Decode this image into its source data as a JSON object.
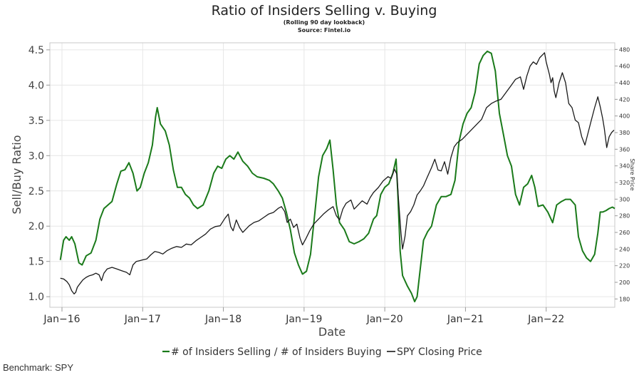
{
  "chart_data": {
    "type": "line",
    "title": "Ratio of Insiders Selling v. Buying",
    "subtitle_lines": [
      "(Rolling 90 day lookback)",
      "Source: Fintel.io"
    ],
    "xlabel": "Date",
    "ylabel_left": "Sell/Buy Ratio",
    "ylabel_right": "Share Price",
    "x_ticks": [
      "Jan−16",
      "Jan−17",
      "Jan−18",
      "Jan−19",
      "Jan−20",
      "Jan−21",
      "Jan−22"
    ],
    "x_range": [
      2015.85,
      2022.85
    ],
    "y_left": {
      "range": [
        0.85,
        4.6
      ],
      "ticks": [
        "1.0",
        "1.5",
        "2.0",
        "2.5",
        "3.0",
        "3.5",
        "4.0",
        "4.5"
      ]
    },
    "y_right": {
      "range": [
        170,
        488
      ],
      "ticks": [
        "180",
        "200",
        "220",
        "240",
        "260",
        "280",
        "300",
        "320",
        "340",
        "360",
        "380",
        "400",
        "420",
        "440",
        "460",
        "480"
      ]
    },
    "grid": true,
    "legend_position": "bottom",
    "series": [
      {
        "name": "# of Insiders Selling / # of Insiders Buying",
        "color": "#1a7a1a",
        "axis": "left",
        "points": [
          [
            2015.98,
            1.52
          ],
          [
            2016.02,
            1.8
          ],
          [
            2016.05,
            1.85
          ],
          [
            2016.09,
            1.8
          ],
          [
            2016.12,
            1.85
          ],
          [
            2016.16,
            1.75
          ],
          [
            2016.21,
            1.48
          ],
          [
            2016.25,
            1.45
          ],
          [
            2016.3,
            1.58
          ],
          [
            2016.36,
            1.62
          ],
          [
            2016.42,
            1.8
          ],
          [
            2016.47,
            2.1
          ],
          [
            2016.52,
            2.25
          ],
          [
            2016.57,
            2.3
          ],
          [
            2016.62,
            2.35
          ],
          [
            2016.68,
            2.6
          ],
          [
            2016.73,
            2.78
          ],
          [
            2016.78,
            2.8
          ],
          [
            2016.83,
            2.9
          ],
          [
            2016.88,
            2.75
          ],
          [
            2016.93,
            2.5
          ],
          [
            2016.97,
            2.55
          ],
          [
            2017.02,
            2.75
          ],
          [
            2017.07,
            2.9
          ],
          [
            2017.12,
            3.15
          ],
          [
            2017.16,
            3.55
          ],
          [
            2017.18,
            3.68
          ],
          [
            2017.22,
            3.45
          ],
          [
            2017.28,
            3.35
          ],
          [
            2017.33,
            3.15
          ],
          [
            2017.38,
            2.8
          ],
          [
            2017.43,
            2.55
          ],
          [
            2017.48,
            2.55
          ],
          [
            2017.53,
            2.45
          ],
          [
            2017.58,
            2.4
          ],
          [
            2017.63,
            2.3
          ],
          [
            2017.68,
            2.25
          ],
          [
            2017.75,
            2.3
          ],
          [
            2017.82,
            2.5
          ],
          [
            2017.88,
            2.75
          ],
          [
            2017.93,
            2.85
          ],
          [
            2017.98,
            2.82
          ],
          [
            2018.03,
            2.95
          ],
          [
            2018.08,
            3.0
          ],
          [
            2018.13,
            2.95
          ],
          [
            2018.18,
            3.05
          ],
          [
            2018.24,
            2.92
          ],
          [
            2018.3,
            2.85
          ],
          [
            2018.36,
            2.75
          ],
          [
            2018.42,
            2.7
          ],
          [
            2018.5,
            2.68
          ],
          [
            2018.57,
            2.65
          ],
          [
            2018.62,
            2.6
          ],
          [
            2018.68,
            2.5
          ],
          [
            2018.73,
            2.4
          ],
          [
            2018.78,
            2.2
          ],
          [
            2018.83,
            1.95
          ],
          [
            2018.88,
            1.62
          ],
          [
            2018.93,
            1.45
          ],
          [
            2018.98,
            1.32
          ],
          [
            2019.03,
            1.36
          ],
          [
            2019.08,
            1.6
          ],
          [
            2019.13,
            2.15
          ],
          [
            2019.18,
            2.7
          ],
          [
            2019.23,
            3.0
          ],
          [
            2019.28,
            3.1
          ],
          [
            2019.32,
            3.22
          ],
          [
            2019.36,
            2.8
          ],
          [
            2019.4,
            2.3
          ],
          [
            2019.44,
            2.05
          ],
          [
            2019.5,
            1.95
          ],
          [
            2019.56,
            1.78
          ],
          [
            2019.62,
            1.75
          ],
          [
            2019.68,
            1.78
          ],
          [
            2019.74,
            1.82
          ],
          [
            2019.8,
            1.9
          ],
          [
            2019.86,
            2.1
          ],
          [
            2019.9,
            2.15
          ],
          [
            2019.95,
            2.45
          ],
          [
            2020.0,
            2.55
          ],
          [
            2020.05,
            2.6
          ],
          [
            2020.1,
            2.75
          ],
          [
            2020.14,
            2.95
          ],
          [
            2020.16,
            2.5
          ],
          [
            2020.19,
            1.65
          ],
          [
            2020.22,
            1.3
          ],
          [
            2020.28,
            1.15
          ],
          [
            2020.33,
            1.05
          ],
          [
            2020.37,
            0.93
          ],
          [
            2020.4,
            1.0
          ],
          [
            2020.44,
            1.4
          ],
          [
            2020.48,
            1.8
          ],
          [
            2020.53,
            1.92
          ],
          [
            2020.58,
            2.0
          ],
          [
            2020.64,
            2.3
          ],
          [
            2020.7,
            2.42
          ],
          [
            2020.76,
            2.42
          ],
          [
            2020.82,
            2.45
          ],
          [
            2020.87,
            2.65
          ],
          [
            2020.92,
            3.2
          ],
          [
            2020.97,
            3.45
          ],
          [
            2021.02,
            3.6
          ],
          [
            2021.07,
            3.68
          ],
          [
            2021.12,
            3.9
          ],
          [
            2021.17,
            4.3
          ],
          [
            2021.22,
            4.42
          ],
          [
            2021.27,
            4.48
          ],
          [
            2021.32,
            4.45
          ],
          [
            2021.37,
            4.2
          ],
          [
            2021.42,
            3.6
          ],
          [
            2021.47,
            3.3
          ],
          [
            2021.52,
            3.0
          ],
          [
            2021.57,
            2.85
          ],
          [
            2021.62,
            2.45
          ],
          [
            2021.67,
            2.3
          ],
          [
            2021.72,
            2.55
          ],
          [
            2021.77,
            2.6
          ],
          [
            2021.82,
            2.72
          ],
          [
            2021.86,
            2.55
          ],
          [
            2021.9,
            2.28
          ],
          [
            2021.96,
            2.3
          ],
          [
            2022.02,
            2.2
          ],
          [
            2022.08,
            2.05
          ],
          [
            2022.13,
            2.3
          ],
          [
            2022.19,
            2.35
          ],
          [
            2022.24,
            2.38
          ],
          [
            2022.3,
            2.38
          ],
          [
            2022.36,
            2.3
          ],
          [
            2022.4,
            1.85
          ],
          [
            2022.45,
            1.65
          ],
          [
            2022.5,
            1.55
          ],
          [
            2022.55,
            1.5
          ],
          [
            2022.6,
            1.6
          ],
          [
            2022.64,
            1.9
          ],
          [
            2022.67,
            2.2
          ],
          [
            2022.7,
            2.2
          ],
          [
            2022.74,
            2.22
          ],
          [
            2022.78,
            2.25
          ],
          [
            2022.82,
            2.27
          ],
          [
            2022.85,
            2.25
          ]
        ]
      },
      {
        "name": "SPY Closing Price",
        "color": "#1a1a1a",
        "axis": "right",
        "points": [
          [
            2015.98,
            205
          ],
          [
            2016.02,
            204
          ],
          [
            2016.06,
            201
          ],
          [
            2016.09,
            197
          ],
          [
            2016.12,
            190
          ],
          [
            2016.15,
            186
          ],
          [
            2016.17,
            188
          ],
          [
            2016.19,
            194
          ],
          [
            2016.22,
            198
          ],
          [
            2016.26,
            203
          ],
          [
            2016.3,
            206
          ],
          [
            2016.34,
            208
          ],
          [
            2016.38,
            209
          ],
          [
            2016.42,
            211
          ],
          [
            2016.46,
            209
          ],
          [
            2016.49,
            202
          ],
          [
            2016.52,
            211
          ],
          [
            2016.56,
            216
          ],
          [
            2016.62,
            218
          ],
          [
            2016.68,
            216
          ],
          [
            2016.74,
            214
          ],
          [
            2016.8,
            212
          ],
          [
            2016.84,
            209
          ],
          [
            2016.88,
            221
          ],
          [
            2016.92,
            225
          ],
          [
            2016.96,
            226
          ],
          [
            2017.0,
            227
          ],
          [
            2017.05,
            228
          ],
          [
            2017.1,
            233
          ],
          [
            2017.15,
            237
          ],
          [
            2017.2,
            236
          ],
          [
            2017.25,
            234
          ],
          [
            2017.3,
            238
          ],
          [
            2017.36,
            241
          ],
          [
            2017.42,
            243
          ],
          [
            2017.48,
            242
          ],
          [
            2017.54,
            246
          ],
          [
            2017.6,
            245
          ],
          [
            2017.66,
            250
          ],
          [
            2017.72,
            254
          ],
          [
            2017.78,
            258
          ],
          [
            2017.84,
            264
          ],
          [
            2017.9,
            267
          ],
          [
            2017.96,
            268
          ],
          [
            2018.02,
            277
          ],
          [
            2018.06,
            282
          ],
          [
            2018.09,
            267
          ],
          [
            2018.12,
            262
          ],
          [
            2018.16,
            275
          ],
          [
            2018.2,
            266
          ],
          [
            2018.24,
            260
          ],
          [
            2018.28,
            264
          ],
          [
            2018.32,
            268
          ],
          [
            2018.38,
            272
          ],
          [
            2018.44,
            274
          ],
          [
            2018.5,
            278
          ],
          [
            2018.56,
            282
          ],
          [
            2018.62,
            284
          ],
          [
            2018.68,
            289
          ],
          [
            2018.72,
            291
          ],
          [
            2018.76,
            285
          ],
          [
            2018.79,
            272
          ],
          [
            2018.83,
            276
          ],
          [
            2018.87,
            266
          ],
          [
            2018.91,
            270
          ],
          [
            2018.95,
            253
          ],
          [
            2018.98,
            245
          ],
          [
            2019.02,
            252
          ],
          [
            2019.07,
            262
          ],
          [
            2019.12,
            270
          ],
          [
            2019.18,
            276
          ],
          [
            2019.24,
            282
          ],
          [
            2019.3,
            287
          ],
          [
            2019.36,
            291
          ],
          [
            2019.4,
            280
          ],
          [
            2019.44,
            275
          ],
          [
            2019.48,
            288
          ],
          [
            2019.52,
            295
          ],
          [
            2019.58,
            299
          ],
          [
            2019.62,
            288
          ],
          [
            2019.66,
            292
          ],
          [
            2019.72,
            298
          ],
          [
            2019.78,
            294
          ],
          [
            2019.82,
            302
          ],
          [
            2019.86,
            308
          ],
          [
            2019.92,
            314
          ],
          [
            2019.98,
            322
          ],
          [
            2020.04,
            327
          ],
          [
            2020.08,
            325
          ],
          [
            2020.12,
            336
          ],
          [
            2020.15,
            330
          ],
          [
            2020.17,
            300
          ],
          [
            2020.2,
            260
          ],
          [
            2020.22,
            240
          ],
          [
            2020.25,
            255
          ],
          [
            2020.28,
            280
          ],
          [
            2020.32,
            285
          ],
          [
            2020.36,
            293
          ],
          [
            2020.4,
            305
          ],
          [
            2020.44,
            310
          ],
          [
            2020.48,
            316
          ],
          [
            2020.52,
            325
          ],
          [
            2020.58,
            338
          ],
          [
            2020.62,
            348
          ],
          [
            2020.66,
            335
          ],
          [
            2020.7,
            334
          ],
          [
            2020.74,
            345
          ],
          [
            2020.78,
            330
          ],
          [
            2020.82,
            350
          ],
          [
            2020.86,
            363
          ],
          [
            2020.9,
            368
          ],
          [
            2020.96,
            372
          ],
          [
            2021.02,
            378
          ],
          [
            2021.08,
            384
          ],
          [
            2021.14,
            390
          ],
          [
            2021.2,
            396
          ],
          [
            2021.26,
            410
          ],
          [
            2021.32,
            415
          ],
          [
            2021.38,
            418
          ],
          [
            2021.44,
            420
          ],
          [
            2021.5,
            428
          ],
          [
            2021.56,
            436
          ],
          [
            2021.62,
            444
          ],
          [
            2021.68,
            447
          ],
          [
            2021.72,
            432
          ],
          [
            2021.76,
            448
          ],
          [
            2021.8,
            460
          ],
          [
            2021.84,
            465
          ],
          [
            2021.88,
            462
          ],
          [
            2021.92,
            470
          ],
          [
            2021.96,
            474
          ],
          [
            2021.98,
            476
          ],
          [
            2022.0,
            465
          ],
          [
            2022.04,
            450
          ],
          [
            2022.06,
            440
          ],
          [
            2022.08,
            446
          ],
          [
            2022.1,
            430
          ],
          [
            2022.12,
            422
          ],
          [
            2022.16,
            440
          ],
          [
            2022.2,
            452
          ],
          [
            2022.24,
            440
          ],
          [
            2022.28,
            415
          ],
          [
            2022.32,
            410
          ],
          [
            2022.36,
            395
          ],
          [
            2022.4,
            392
          ],
          [
            2022.44,
            375
          ],
          [
            2022.48,
            365
          ],
          [
            2022.52,
            380
          ],
          [
            2022.56,
            395
          ],
          [
            2022.6,
            410
          ],
          [
            2022.64,
            423
          ],
          [
            2022.67,
            411
          ],
          [
            2022.7,
            397
          ],
          [
            2022.72,
            385
          ],
          [
            2022.75,
            362
          ],
          [
            2022.78,
            375
          ],
          [
            2022.81,
            380
          ],
          [
            2022.84,
            383
          ]
        ]
      }
    ]
  },
  "footer": {
    "benchmark": "Benchmark: SPY"
  }
}
